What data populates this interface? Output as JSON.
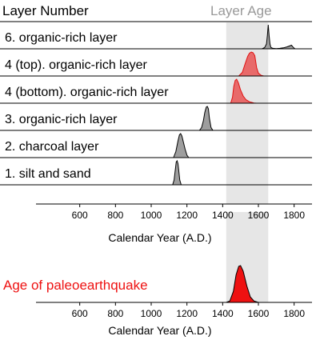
{
  "colors": {
    "layer_fill": "#9e9e9e",
    "highlight_fill": "#e86a6a",
    "highlight_stroke": "#e01010",
    "eq_fill": "#ee1111",
    "eq_label": "#ee1111",
    "band": "#e6e6e6",
    "band_label": "#999999"
  },
  "chart_data": {
    "type": "area",
    "header_left": "Layer Number",
    "header_right": "Layer Age",
    "xlabel": "Calendar Year (A.D.)",
    "xlim": [
      400,
      1900
    ],
    "xticks": [
      "600",
      "800",
      "1000",
      "1200",
      "1400",
      "1600",
      "1800"
    ],
    "xtick_values": [
      600,
      800,
      1000,
      1200,
      1400,
      1600,
      1800
    ],
    "layer_age_band": [
      1420,
      1655
    ],
    "layers": [
      {
        "label": "6. organic-rich layer",
        "highlight": false,
        "x": [
          1620,
          1635,
          1645,
          1650,
          1655,
          1660,
          1665,
          1670,
          1680,
          1700,
          1720,
          1740,
          1760,
          1775,
          1785,
          1795,
          1805
        ],
        "y": [
          0,
          0.05,
          0.2,
          0.55,
          1.0,
          0.55,
          0.2,
          0.06,
          0.02,
          0.01,
          0.02,
          0.04,
          0.08,
          0.12,
          0.15,
          0.06,
          0
        ]
      },
      {
        "label": "4 (top). organic-rich layer",
        "highlight": true,
        "x": [
          1490,
          1510,
          1525,
          1540,
          1550,
          1560,
          1570,
          1580,
          1590,
          1600,
          1615,
          1630
        ],
        "y": [
          0,
          0.15,
          0.5,
          0.82,
          0.95,
          1.0,
          0.97,
          0.85,
          0.35,
          0.12,
          0.03,
          0
        ]
      },
      {
        "label": "4 (bottom). organic-rich layer",
        "highlight": true,
        "x": [
          1445,
          1455,
          1462,
          1470,
          1478,
          1488,
          1500,
          1515,
          1530,
          1550,
          1575,
          1590
        ],
        "y": [
          0,
          0.25,
          0.7,
          0.95,
          1.0,
          0.85,
          0.55,
          0.3,
          0.15,
          0.06,
          0.01,
          0
        ]
      },
      {
        "label": "3. organic-rich layer",
        "highlight": false,
        "x": [
          1270,
          1282,
          1292,
          1300,
          1308,
          1314,
          1320,
          1326,
          1335,
          1345
        ],
        "y": [
          0,
          0.12,
          0.4,
          0.75,
          0.97,
          1.0,
          0.9,
          0.5,
          0.12,
          0
        ]
      },
      {
        "label": "2. charcoal layer",
        "highlight": false,
        "x": [
          1125,
          1138,
          1150,
          1158,
          1165,
          1172,
          1180,
          1190,
          1200,
          1210
        ],
        "y": [
          0,
          0.25,
          0.7,
          0.95,
          1.0,
          0.9,
          0.65,
          0.35,
          0.1,
          0
        ]
      },
      {
        "label": "1. silt and sand",
        "highlight": false,
        "x": [
          1120,
          1128,
          1135,
          1140,
          1145,
          1150,
          1155,
          1160,
          1168
        ],
        "y": [
          0,
          0.2,
          0.65,
          0.95,
          1.0,
          0.88,
          0.55,
          0.2,
          0
        ]
      }
    ],
    "earthquake": {
      "label": "Age of paleoearthquake",
      "x": [
        1420,
        1440,
        1460,
        1475,
        1490,
        1500,
        1515,
        1535,
        1555,
        1575,
        1600
      ],
      "y": [
        0,
        0.04,
        0.3,
        0.75,
        0.98,
        1.0,
        0.85,
        0.45,
        0.15,
        0.04,
        0
      ]
    }
  }
}
